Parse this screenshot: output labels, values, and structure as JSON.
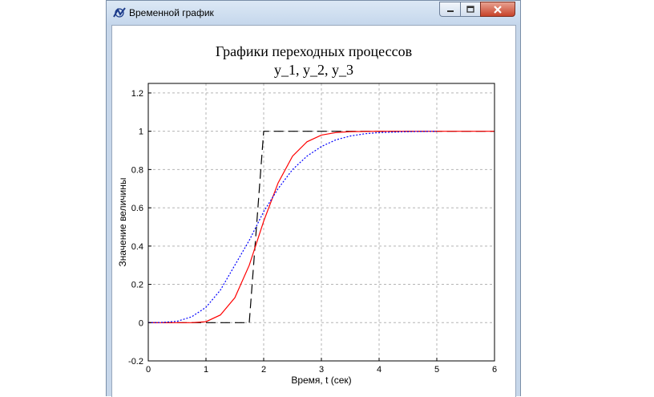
{
  "window": {
    "title": "Временной график",
    "icon": "app-graph-icon",
    "buttons": [
      "minimize-icon",
      "maximize-icon",
      "close-icon"
    ]
  },
  "chart_data": {
    "type": "line",
    "title": "Графики переходных процессов",
    "subtitle": "y_1, y_2, y_3",
    "xlabel": "Время, t (сек)",
    "ylabel": "Значение величины",
    "xlim": [
      0,
      6
    ],
    "ylim": [
      -0.2,
      1.25
    ],
    "xticks": [
      0,
      1,
      2,
      3,
      4,
      5,
      6
    ],
    "yticks": [
      -0.2,
      0,
      0.2,
      0.4,
      0.6,
      0.8,
      1,
      1.2
    ],
    "grid": true,
    "series": [
      {
        "color": "#000000",
        "style": "dashed",
        "x": [
          0,
          1.75,
          2.0,
          6.0
        ],
        "y": [
          0,
          0,
          1,
          1
        ]
      },
      {
        "color": "#ff0000",
        "style": "solid",
        "x": [
          0,
          0.75,
          1.0,
          1.25,
          1.5,
          1.75,
          2.0,
          2.25,
          2.5,
          2.75,
          3.0,
          3.25,
          3.5,
          4.0,
          4.5,
          5.0,
          6.0
        ],
        "y": [
          0,
          0,
          0.005,
          0.04,
          0.13,
          0.3,
          0.53,
          0.73,
          0.87,
          0.945,
          0.98,
          0.993,
          0.998,
          1,
          1,
          1,
          1
        ]
      },
      {
        "color": "#0000ff",
        "style": "dotted",
        "x": [
          0,
          0.25,
          0.5,
          0.75,
          1.0,
          1.25,
          1.5,
          1.75,
          2.0,
          2.25,
          2.5,
          2.75,
          3.0,
          3.25,
          3.5,
          3.75,
          4.0,
          4.5,
          5.0
        ],
        "y": [
          0,
          0.001,
          0.007,
          0.03,
          0.08,
          0.17,
          0.3,
          0.43,
          0.58,
          0.7,
          0.8,
          0.87,
          0.92,
          0.955,
          0.975,
          0.987,
          0.993,
          0.998,
          1
        ]
      }
    ]
  }
}
